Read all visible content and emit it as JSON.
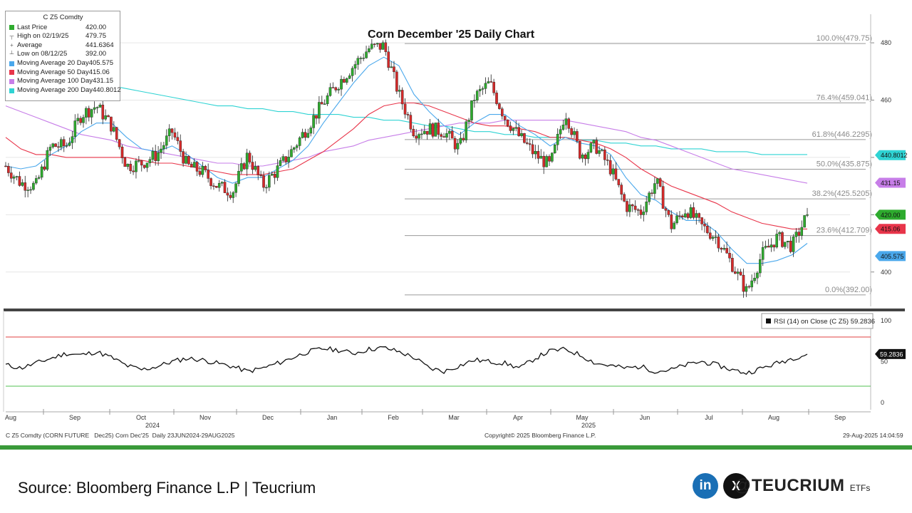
{
  "chart_data": {
    "type": "candlestick",
    "title": "Corn December '25 Daily Chart",
    "ticker": "C Z5 Comdty",
    "legend": [
      {
        "name": "Last Price",
        "value": "420.00",
        "color": "#2eab2e",
        "marker": "swatch"
      },
      {
        "name": "High on 02/19/25",
        "value": "479.75",
        "color": "#666666",
        "marker": "high"
      },
      {
        "name": "Average",
        "value": "441.6364",
        "color": "#666666",
        "marker": "avg"
      },
      {
        "name": "Low on 08/12/25",
        "value": "392.00",
        "color": "#666666",
        "marker": "low"
      },
      {
        "name": "Moving Average 20 Day",
        "value": "405.575",
        "color": "#4aa8ec",
        "marker": "swatch"
      },
      {
        "name": "Moving Average 50 Day",
        "value": "415.06",
        "color": "#e8354a",
        "marker": "swatch"
      },
      {
        "name": "Moving Average 100 Day",
        "value": "431.15",
        "color": "#c77ee8",
        "marker": "swatch"
      },
      {
        "name": "Moving Average 200 Day",
        "value": "440.8012",
        "color": "#2fd3d3",
        "marker": "swatch"
      }
    ],
    "price_axis": {
      "ticks": [
        400,
        420,
        440,
        460,
        480
      ],
      "range": [
        388,
        485
      ]
    },
    "x_axis": {
      "months": [
        "Aug",
        "Sep",
        "Oct",
        "Nov",
        "Dec",
        "Jan",
        "Feb",
        "Mar",
        "Apr",
        "May",
        "Jun",
        "Jul",
        "Aug",
        "Sep"
      ],
      "years": [
        "2024",
        "2025"
      ]
    },
    "fibonacci": [
      {
        "label": "100.0%(479.75)",
        "value": 479.75
      },
      {
        "label": "76.4%(459.041)",
        "value": 459.041
      },
      {
        "label": "61.8%(446.2295)",
        "value": 446.2295
      },
      {
        "label": "50.0%(435.875)",
        "value": 435.875
      },
      {
        "label": "38.2%(425.5205)",
        "value": 425.5205
      },
      {
        "label": "23.6%(412.709)",
        "value": 412.709
      },
      {
        "label": "0.0%(392.00)",
        "value": 392.0
      }
    ],
    "price_flags": [
      {
        "text": "440.8012",
        "value": 440.8012,
        "color": "#2fd3d3"
      },
      {
        "text": "431.15",
        "value": 431.15,
        "color": "#c77ee8"
      },
      {
        "text": "420.00",
        "value": 420.0,
        "color": "#2eab2e"
      },
      {
        "text": "415.06",
        "value": 415.06,
        "color": "#e8354a"
      },
      {
        "text": "405.575",
        "value": 405.575,
        "color": "#4aa8ec"
      }
    ],
    "candle_colors": {
      "up": "#2eab2e",
      "down": "#d62a2a"
    },
    "price_path": [
      [
        "Aug",
        437
      ],
      [
        "Aug",
        431
      ],
      [
        "Aug",
        430
      ],
      [
        "Sep",
        444
      ],
      [
        "Sep",
        444
      ],
      [
        "Sep",
        455
      ],
      [
        "Sep",
        458
      ],
      [
        "Oct",
        451
      ],
      [
        "Oct",
        437
      ],
      [
        "Oct",
        438
      ],
      [
        "Oct",
        441
      ],
      [
        "Oct",
        449
      ],
      [
        "Nov",
        437
      ],
      [
        "Nov",
        435
      ],
      [
        "Nov",
        430
      ],
      [
        "Nov",
        428
      ],
      [
        "Dec",
        441
      ],
      [
        "Dec",
        430
      ],
      [
        "Dec",
        436
      ],
      [
        "Dec",
        443
      ],
      [
        "Jan",
        451
      ],
      [
        "Jan",
        459
      ],
      [
        "Jan",
        466
      ],
      [
        "Jan",
        472
      ],
      [
        "Feb",
        478
      ],
      [
        "Feb",
        479
      ],
      [
        "Feb",
        462
      ],
      [
        "Feb",
        449
      ],
      [
        "Mar",
        450
      ],
      [
        "Mar",
        449
      ],
      [
        "Mar",
        443
      ],
      [
        "Apr",
        461
      ],
      [
        "Apr",
        466
      ],
      [
        "Apr",
        454
      ],
      [
        "Apr",
        447
      ],
      [
        "May",
        441
      ],
      [
        "May",
        437
      ],
      [
        "May",
        456
      ],
      [
        "May",
        441
      ],
      [
        "Jun",
        444
      ],
      [
        "Jun",
        436
      ],
      [
        "Jun",
        423
      ],
      [
        "Jun",
        421
      ],
      [
        "Jul",
        432
      ],
      [
        "Jul",
        416
      ],
      [
        "Jul",
        422
      ],
      [
        "Jul",
        416
      ],
      [
        "Jul",
        412
      ],
      [
        "Aug",
        403
      ],
      [
        "Aug",
        393
      ],
      [
        "Aug",
        406
      ],
      [
        "Aug",
        412
      ],
      [
        "Aug",
        409
      ],
      [
        "Aug",
        420
      ]
    ],
    "ma20_path": [
      437,
      436,
      437,
      441,
      444,
      449,
      452,
      452,
      447,
      443,
      442,
      444,
      441,
      437,
      433,
      431,
      433,
      433,
      436,
      439,
      444,
      452,
      459,
      466,
      472,
      475,
      472,
      462,
      456,
      451,
      448,
      452,
      455,
      455,
      451,
      448,
      444,
      447,
      445,
      444,
      441,
      433,
      427,
      425,
      421,
      418,
      418,
      414,
      408,
      403,
      403,
      404,
      406,
      410
    ],
    "ma50_path": [
      447,
      443,
      441,
      441,
      440,
      440,
      440,
      440,
      440,
      439,
      438,
      438,
      437,
      436,
      435,
      434,
      434,
      434,
      435,
      436,
      439,
      442,
      446,
      450,
      455,
      458,
      459,
      459,
      458,
      456,
      454,
      452,
      451,
      451,
      450,
      449,
      447,
      447,
      446,
      445,
      443,
      440,
      436,
      433,
      430,
      428,
      426,
      424,
      421,
      419,
      417,
      416,
      415,
      415
    ],
    "ma100_path": [
      458,
      456,
      454,
      452,
      450,
      448,
      447,
      446,
      444,
      443,
      442,
      441,
      440,
      439,
      438,
      438,
      437,
      437,
      438,
      439,
      440,
      442,
      443,
      444,
      446,
      447,
      448,
      449,
      450,
      451,
      452,
      452,
      452,
      453,
      453,
      453,
      453,
      453,
      452,
      451,
      450,
      449,
      447,
      446,
      444,
      442,
      440,
      438,
      436,
      435,
      434,
      433,
      432,
      431
    ],
    "ma200_path": [
      472,
      471,
      470,
      469,
      468,
      467,
      466,
      465,
      464,
      463,
      462,
      461,
      460,
      459,
      458,
      458,
      457,
      457,
      456,
      456,
      455,
      455,
      455,
      454,
      454,
      453,
      453,
      452,
      451,
      451,
      450,
      449,
      449,
      448,
      448,
      447,
      447,
      447,
      446,
      446,
      445,
      445,
      444,
      444,
      443,
      443,
      443,
      442,
      442,
      442,
      441,
      441,
      441,
      441
    ]
  },
  "rsi": {
    "label": "RSI (14)",
    "source": "on Close (C Z5)",
    "value": "59.2836",
    "ticks": [
      100,
      50,
      0
    ],
    "levels": [
      80,
      20
    ],
    "path": [
      46,
      42,
      48,
      54,
      60,
      58,
      62,
      55,
      45,
      40,
      44,
      50,
      54,
      52,
      48,
      44,
      38,
      42,
      48,
      55,
      62,
      66,
      64,
      60,
      65,
      67,
      62,
      55,
      42,
      38,
      45,
      52,
      50,
      48,
      42,
      54,
      63,
      65,
      58,
      48,
      45,
      42,
      44,
      38,
      40,
      46,
      50,
      46,
      40,
      36,
      42,
      48,
      54,
      59
    ]
  },
  "info": {
    "footer_left": "C Z5 Comdty (CORN FUTURE   Dec25) Corn Dec'25  Daily 23JUN2024-29AUG2025",
    "copyright": "Copyright© 2025 Bloomberg Finance L.P.",
    "timestamp": "29-Aug-2025 14:04:59"
  },
  "page": {
    "source": "Source: Bloomberg Finance L.P | Teucrium",
    "linkedin_icon": "in",
    "x_icon": "X",
    "brand_at": "@",
    "brand_name": "TEUCRIUM",
    "brand_suffix": "ETFs",
    "accent": "#3a9a3a"
  }
}
